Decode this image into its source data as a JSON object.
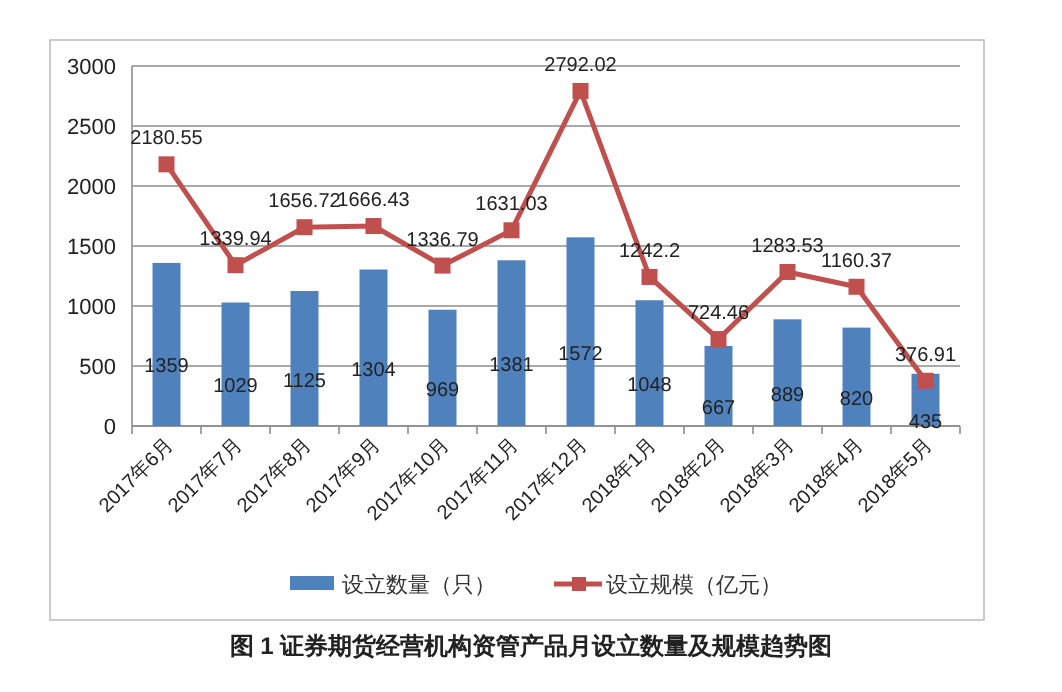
{
  "chart_data": {
    "type": "bar",
    "title": "图 1  证券期货经营机构资管产品月设立数量及规模趋势图",
    "categories": [
      "2017年6月",
      "2017年7月",
      "2017年8月",
      "2017年9月",
      "2017年10月",
      "2017年11月",
      "2017年12月",
      "2018年1月",
      "2018年2月",
      "2018年3月",
      "2018年4月",
      "2018年5月"
    ],
    "series": [
      {
        "name": "设立数量（只）",
        "color": "#4f81bd",
        "values": [
          1359,
          1029,
          1125,
          1304,
          969,
          1381,
          1572,
          1048,
          667,
          889,
          820,
          435
        ]
      },
      {
        "name": "设立规模（亿元）",
        "type": "line",
        "color": "#c0504d",
        "marker": "square",
        "values": [
          2180.55,
          1339.94,
          1656.72,
          1666.43,
          1336.79,
          1631.03,
          2792.02,
          1242.2,
          724.46,
          1283.53,
          1160.37,
          376.91
        ]
      }
    ],
    "ylim": [
      0,
      3000
    ],
    "yticks": [
      0,
      500,
      1000,
      1500,
      2000,
      2500,
      3000
    ],
    "grid": "y",
    "legend": "bottom",
    "data_labels": true
  }
}
